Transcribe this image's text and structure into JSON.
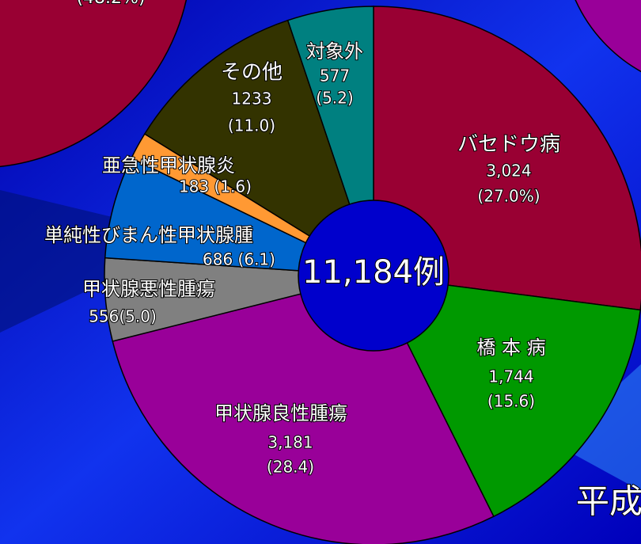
{
  "chart_data": {
    "type": "pie",
    "center_label": "11,184例",
    "categories": [
      "バセドウ病",
      "橋 本 病",
      "甲状腺良性腫瘍",
      "甲状腺悪性腫瘍",
      "単純性びまん性甲状腺腫",
      "亜急性甲状腺炎",
      "その他",
      "対象外"
    ],
    "values": [
      3024,
      1744,
      3181,
      556,
      686,
      183,
      1233,
      577
    ],
    "value_labels": [
      "3,024",
      "1,744",
      "3,181",
      "556(5.0)",
      "686 (6.1)",
      "183 (1.6)",
      "1233",
      "577"
    ],
    "percents": [
      27.0,
      15.6,
      28.4,
      5.0,
      6.1,
      1.6,
      11.0,
      5.2
    ],
    "percent_labels": [
      "(27.0%)",
      "(15.6)",
      "(28.4)",
      null,
      null,
      null,
      "(11.0)",
      "(5.2)"
    ],
    "colors": [
      "#990033",
      "#009900",
      "#990099",
      "#808080",
      "#0066cc",
      "#ff9933",
      "#333300",
      "#008080"
    ],
    "background_texts": [
      "(48.2%)",
      "平成"
    ]
  }
}
